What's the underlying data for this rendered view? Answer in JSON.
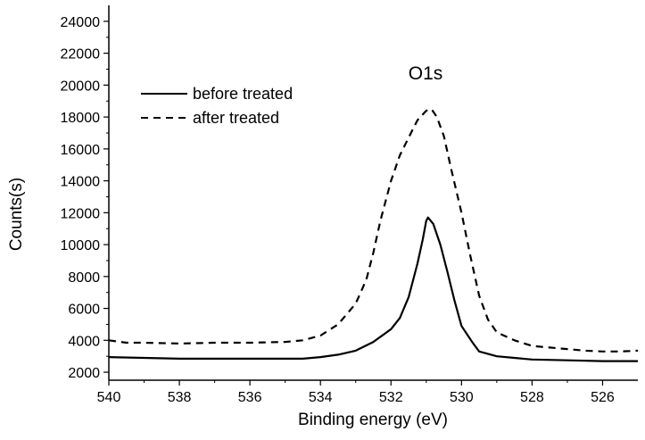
{
  "chart_data": {
    "type": "line",
    "title": "",
    "xlabel": "Binding energy (eV)",
    "ylabel": "Counts(s)",
    "annotation": "O1s",
    "xlim": [
      540,
      525
    ],
    "ylim": [
      1500,
      25000
    ],
    "x_reversed": true,
    "grid": false,
    "legend_position": "top-left",
    "x_ticks": [
      540,
      538,
      536,
      534,
      532,
      530,
      528,
      526
    ],
    "y_ticks": [
      2000,
      4000,
      6000,
      8000,
      10000,
      12000,
      14000,
      16000,
      18000,
      20000,
      22000,
      24000
    ],
    "series": [
      {
        "name": "before treated",
        "style": "solid",
        "color": "#000000",
        "points": [
          [
            540,
            2950
          ],
          [
            539,
            2900
          ],
          [
            538,
            2850
          ],
          [
            537,
            2850
          ],
          [
            536,
            2850
          ],
          [
            535,
            2850
          ],
          [
            534.5,
            2850
          ],
          [
            534,
            2950
          ],
          [
            533.5,
            3100
          ],
          [
            533,
            3350
          ],
          [
            532.5,
            3900
          ],
          [
            532,
            4700
          ],
          [
            531.75,
            5400
          ],
          [
            531.5,
            6700
          ],
          [
            531.25,
            8800
          ],
          [
            531.1,
            10300
          ],
          [
            531,
            11500
          ],
          [
            530.95,
            11700
          ],
          [
            530.8,
            11300
          ],
          [
            530.6,
            10000
          ],
          [
            530.4,
            8300
          ],
          [
            530.2,
            6500
          ],
          [
            530,
            4900
          ],
          [
            529.7,
            3900
          ],
          [
            529.5,
            3300
          ],
          [
            529,
            3000
          ],
          [
            528.5,
            2900
          ],
          [
            528,
            2800
          ],
          [
            527,
            2750
          ],
          [
            526,
            2700
          ],
          [
            525,
            2700
          ]
        ]
      },
      {
        "name": "after treated",
        "style": "dashed",
        "color": "#000000",
        "points": [
          [
            540,
            4000
          ],
          [
            539.5,
            3850
          ],
          [
            539,
            3850
          ],
          [
            538,
            3800
          ],
          [
            537,
            3850
          ],
          [
            536,
            3850
          ],
          [
            535,
            3900
          ],
          [
            534.5,
            4000
          ],
          [
            534,
            4300
          ],
          [
            533.5,
            5000
          ],
          [
            533,
            6300
          ],
          [
            532.7,
            7800
          ],
          [
            532.5,
            9500
          ],
          [
            532.3,
            11500
          ],
          [
            532,
            14000
          ],
          [
            531.75,
            15600
          ],
          [
            531.5,
            16700
          ],
          [
            531.25,
            17800
          ],
          [
            531,
            18400
          ],
          [
            530.85,
            18500
          ],
          [
            530.7,
            18000
          ],
          [
            530.5,
            16800
          ],
          [
            530.3,
            14800
          ],
          [
            530,
            12000
          ],
          [
            529.75,
            9300
          ],
          [
            529.5,
            6800
          ],
          [
            529.25,
            5300
          ],
          [
            529,
            4500
          ],
          [
            528.5,
            4000
          ],
          [
            528,
            3650
          ],
          [
            527.5,
            3550
          ],
          [
            527,
            3450
          ],
          [
            526.5,
            3350
          ],
          [
            526,
            3300
          ],
          [
            525.5,
            3300
          ],
          [
            525,
            3350
          ]
        ]
      }
    ]
  }
}
